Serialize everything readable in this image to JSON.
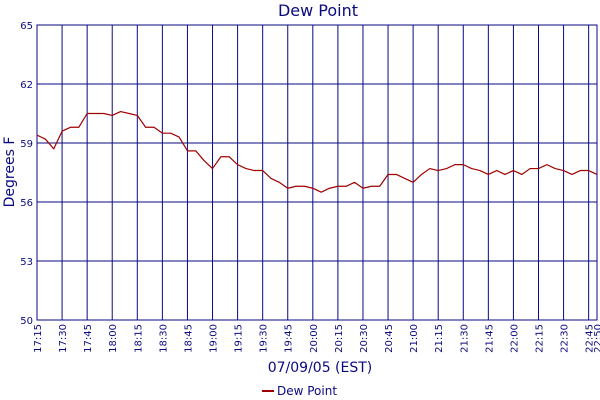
{
  "chart_data": {
    "type": "line",
    "title": "Dew Point",
    "xlabel": "07/09/05 (EST)",
    "ylabel": "Degrees F",
    "ylim": [
      50,
      65
    ],
    "yticks": [
      "50",
      "53",
      "56",
      "59",
      "62",
      "65"
    ],
    "x_tick_labels": [
      "17:15",
      "17:30",
      "17:45",
      "18:00",
      "18:15",
      "18:30",
      "18:45",
      "19:00",
      "19:15",
      "19:30",
      "19:45",
      "20:00",
      "20:15",
      "20:30",
      "20:45",
      "21:00",
      "21:15",
      "21:30",
      "21:45",
      "22:00",
      "22:15",
      "22:30",
      "22:45",
      "22:50"
    ],
    "grid": true,
    "legend": {
      "position": "bottom-center",
      "entries": [
        "Dew Point"
      ]
    },
    "series": [
      {
        "name": "Dew Point",
        "color": "#a00000",
        "points": [
          [
            "17:15",
            59.4
          ],
          [
            "17:20",
            59.2
          ],
          [
            "17:25",
            58.7
          ],
          [
            "17:30",
            59.6
          ],
          [
            "17:35",
            59.8
          ],
          [
            "17:40",
            59.8
          ],
          [
            "17:45",
            60.5
          ],
          [
            "17:50",
            60.5
          ],
          [
            "17:55",
            60.5
          ],
          [
            "18:00",
            60.4
          ],
          [
            "18:05",
            60.6
          ],
          [
            "18:10",
            60.5
          ],
          [
            "18:15",
            60.4
          ],
          [
            "18:20",
            59.8
          ],
          [
            "18:25",
            59.8
          ],
          [
            "18:30",
            59.5
          ],
          [
            "18:35",
            59.5
          ],
          [
            "18:40",
            59.3
          ],
          [
            "18:45",
            58.6
          ],
          [
            "18:50",
            58.6
          ],
          [
            "18:55",
            58.1
          ],
          [
            "19:00",
            57.7
          ],
          [
            "19:05",
            58.3
          ],
          [
            "19:10",
            58.3
          ],
          [
            "19:15",
            57.9
          ],
          [
            "19:20",
            57.7
          ],
          [
            "19:25",
            57.6
          ],
          [
            "19:30",
            57.6
          ],
          [
            "19:35",
            57.2
          ],
          [
            "19:40",
            57.0
          ],
          [
            "19:45",
            56.7
          ],
          [
            "19:50",
            56.8
          ],
          [
            "19:55",
            56.8
          ],
          [
            "20:00",
            56.7
          ],
          [
            "20:05",
            56.5
          ],
          [
            "20:10",
            56.7
          ],
          [
            "20:15",
            56.8
          ],
          [
            "20:20",
            56.8
          ],
          [
            "20:25",
            57.0
          ],
          [
            "20:30",
            56.7
          ],
          [
            "20:35",
            56.8
          ],
          [
            "20:40",
            56.8
          ],
          [
            "20:45",
            57.4
          ],
          [
            "20:50",
            57.4
          ],
          [
            "20:55",
            57.2
          ],
          [
            "21:00",
            57.0
          ],
          [
            "21:05",
            57.4
          ],
          [
            "21:10",
            57.7
          ],
          [
            "21:15",
            57.6
          ],
          [
            "21:20",
            57.7
          ],
          [
            "21:25",
            57.9
          ],
          [
            "21:30",
            57.9
          ],
          [
            "21:35",
            57.7
          ],
          [
            "21:40",
            57.6
          ],
          [
            "21:45",
            57.4
          ],
          [
            "21:50",
            57.6
          ],
          [
            "21:55",
            57.4
          ],
          [
            "22:00",
            57.6
          ],
          [
            "22:05",
            57.4
          ],
          [
            "22:10",
            57.7
          ],
          [
            "22:15",
            57.7
          ],
          [
            "22:20",
            57.9
          ],
          [
            "22:25",
            57.7
          ],
          [
            "22:30",
            57.6
          ],
          [
            "22:35",
            57.4
          ],
          [
            "22:40",
            57.6
          ],
          [
            "22:45",
            57.6
          ],
          [
            "22:50",
            57.4
          ]
        ]
      }
    ]
  }
}
